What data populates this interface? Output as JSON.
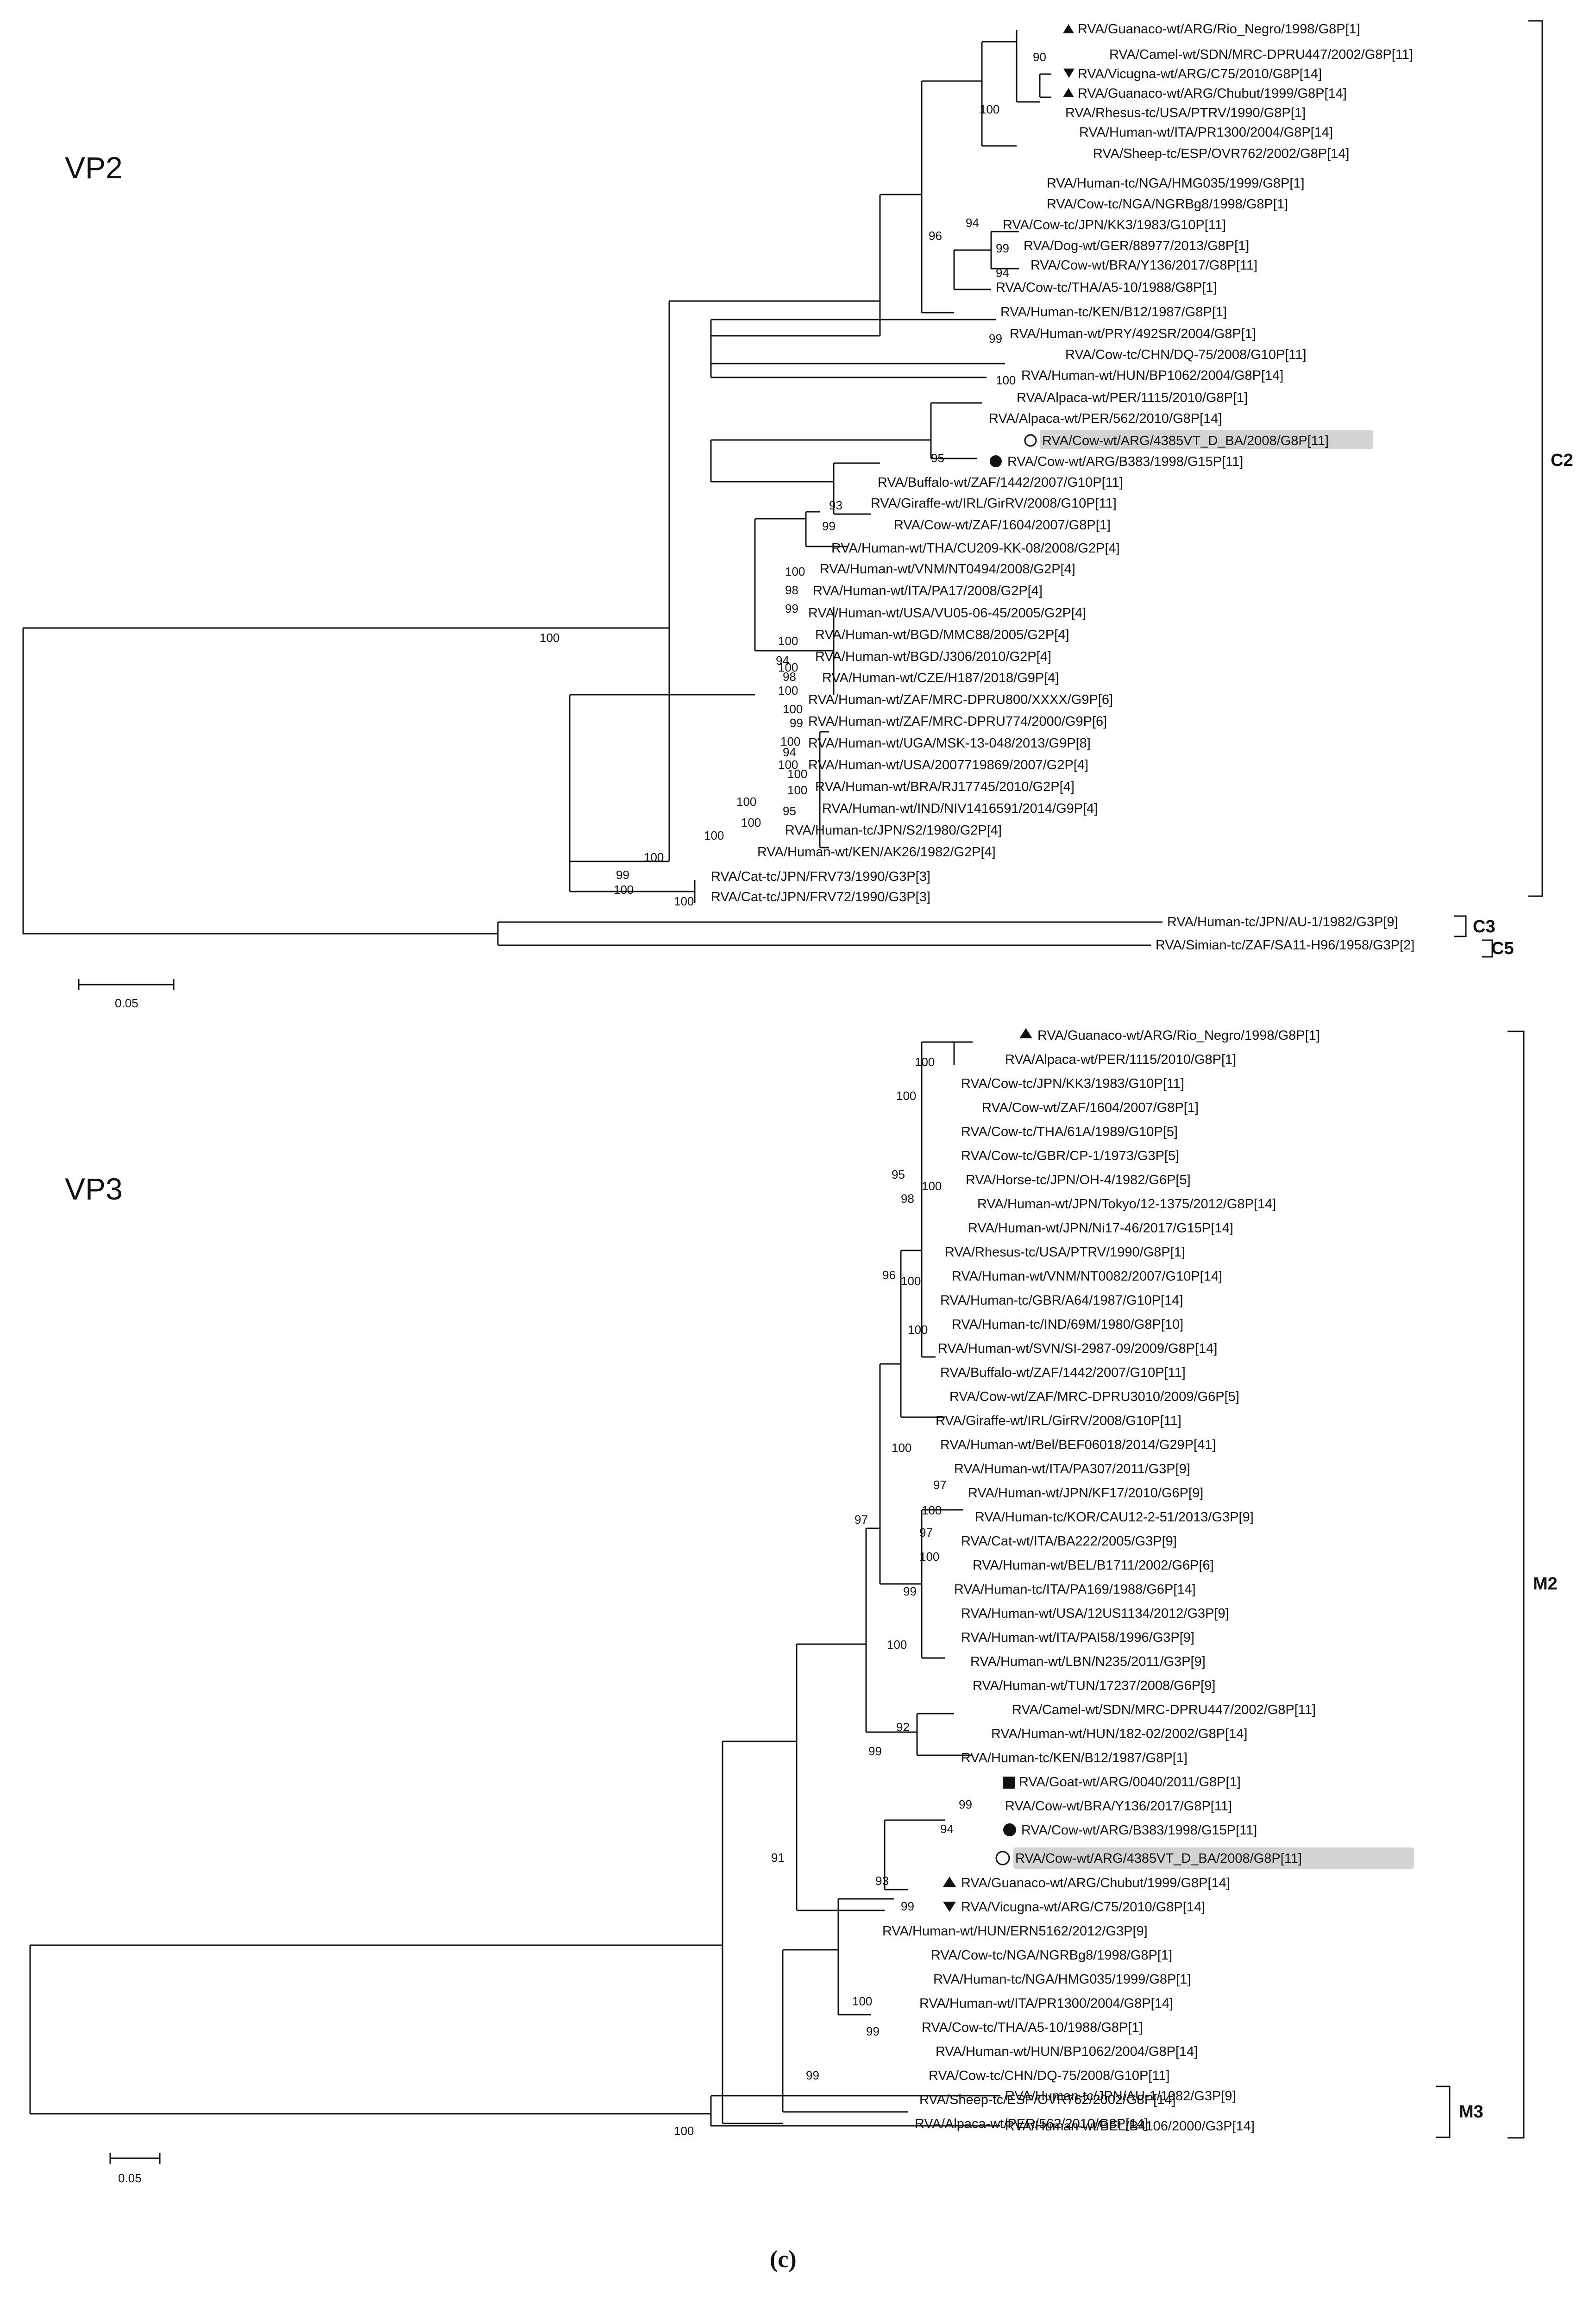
{
  "caption": "(c)",
  "scale_label": "0.05",
  "panels": [
    {
      "id": "vp2",
      "title": "VP2",
      "clades": [
        "C2",
        "C3",
        "C5"
      ],
      "tips": [
        {
          "label": "RVA/Guanaco-wt/ARG/Rio_Negro/1998/G8P[1]",
          "marker": "triangle-up"
        },
        {
          "label": "RVA/Camel-wt/SDN/MRC-DPRU447/2002/G8P[11]",
          "marker": ""
        },
        {
          "label": "RVA/Vicugna-wt/ARG/C75/2010/G8P[14]",
          "marker": "triangle-down"
        },
        {
          "label": "RVA/Guanaco-wt/ARG/Chubut/1999/G8P[14]",
          "marker": "triangle-up"
        },
        {
          "label": "RVA/Rhesus-tc/USA/PTRV/1990/G8P[1]",
          "marker": ""
        },
        {
          "label": "RVA/Human-wt/ITA/PR1300/2004/G8P[14]",
          "marker": ""
        },
        {
          "label": "RVA/Sheep-tc/ESP/OVR762/2002/G8P[14]",
          "marker": ""
        },
        {
          "label": "RVA/Human-tc/NGA/HMG035/1999/G8P[1]",
          "marker": ""
        },
        {
          "label": "RVA/Cow-tc/NGA/NGRBg8/1998/G8P[1]",
          "marker": ""
        },
        {
          "label": "RVA/Cow-tc/JPN/KK3/1983/G10P[11]",
          "marker": ""
        },
        {
          "label": "RVA/Dog-wt/GER/88977/2013/G8P[1]",
          "marker": ""
        },
        {
          "label": "RVA/Cow-wt/BRA/Y136/2017/G8P[11]",
          "marker": ""
        },
        {
          "label": "RVA/Cow-tc/THA/A5-10/1988/G8P[1]",
          "marker": ""
        },
        {
          "label": "RVA/Human-tc/KEN/B12/1987/G8P[1]",
          "marker": ""
        },
        {
          "label": "RVA/Human-wt/PRY/492SR/2004/G8P[1]",
          "marker": ""
        },
        {
          "label": "RVA/Cow-tc/CHN/DQ-75/2008/G10P[11]",
          "marker": ""
        },
        {
          "label": "RVA/Human-wt/HUN/BP1062/2004/G8P[14]",
          "marker": ""
        },
        {
          "label": "RVA/Alpaca-wt/PER/1115/2010/G8P[1]",
          "marker": ""
        },
        {
          "label": "RVA/Alpaca-wt/PER/562/2010/G8P[14]",
          "marker": ""
        },
        {
          "label": "RVA/Cow-wt/ARG/4385VT_D_BA/2008/G8P[11]",
          "marker": "circle-open",
          "highlight": true
        },
        {
          "label": "RVA/Cow-wt/ARG/B383/1998/G15P[11]",
          "marker": "circle-filled"
        },
        {
          "label": "RVA/Buffalo-wt/ZAF/1442/2007/G10P[11]",
          "marker": ""
        },
        {
          "label": "RVA/Giraffe-wt/IRL/GirRV/2008/G10P[11]",
          "marker": ""
        },
        {
          "label": "RVA/Cow-wt/ZAF/1604/2007/G8P[1]",
          "marker": ""
        },
        {
          "label": "RVA/Human-wt/THA/CU209-KK-08/2008/G2P[4]",
          "marker": ""
        },
        {
          "label": "RVA/Human-wt/VNM/NT0494/2008/G2P[4]",
          "marker": ""
        },
        {
          "label": "RVA/Human-wt/ITA/PA17/2008/G2P[4]",
          "marker": ""
        },
        {
          "label": "RVA/Human-wt/USA/VU05-06-45/2005/G2P[4]",
          "marker": ""
        },
        {
          "label": "RVA/Human-wt/BGD/MMC88/2005/G2P[4]",
          "marker": ""
        },
        {
          "label": "RVA/Human-wt/BGD/J306/2010/G2P[4]",
          "marker": ""
        },
        {
          "label": "RVA/Human-wt/CZE/H187/2018/G9P[4]",
          "marker": ""
        },
        {
          "label": "RVA/Human-wt/ZAF/MRC-DPRU800/XXXX/G9P[6]",
          "marker": ""
        },
        {
          "label": "RVA/Human-wt/ZAF/MRC-DPRU774/2000/G9P[6]",
          "marker": ""
        },
        {
          "label": "RVA/Human-wt/UGA/MSK-13-048/2013/G9P[8]",
          "marker": ""
        },
        {
          "label": "RVA/Human-wt/USA/2007719869/2007/G2P[4]",
          "marker": ""
        },
        {
          "label": "RVA/Human-wt/BRA/RJ17745/2010/G2P[4]",
          "marker": ""
        },
        {
          "label": "RVA/Human-wt/IND/NIV1416591/2014/G9P[4]",
          "marker": ""
        },
        {
          "label": "RVA/Human-tc/JPN/S2/1980/G2P[4]",
          "marker": ""
        },
        {
          "label": "RVA/Human-wt/KEN/AK26/1982/G2P[4]",
          "marker": ""
        },
        {
          "label": "RVA/Cat-tc/JPN/FRV73/1990/G3P[3]",
          "marker": ""
        },
        {
          "label": "RVA/Cat-tc/JPN/FRV72/1990/G3P[3]",
          "marker": ""
        },
        {
          "label": "RVA/Human-tc/JPN/AU-1/1982/G3P[9]",
          "marker": ""
        },
        {
          "label": "RVA/Simian-tc/ZAF/SA11-H96/1958/G3P[2]",
          "marker": ""
        }
      ],
      "bootstrap": [
        "90",
        "100",
        "94",
        "99",
        "94",
        "96",
        "99",
        "100",
        "95",
        "93",
        "99",
        "100",
        "98",
        "99",
        "100",
        "94",
        "98",
        "100",
        "99",
        "100",
        "94",
        "100",
        "100",
        "95",
        "99",
        "100",
        "100",
        "100",
        "100",
        "100",
        "100",
        "100",
        "100",
        "100",
        "100"
      ]
    },
    {
      "id": "vp3",
      "title": "VP3",
      "clades": [
        "M2",
        "M3"
      ],
      "tips": [
        {
          "label": "RVA/Guanaco-wt/ARG/Rio_Negro/1998/G8P[1]",
          "marker": "triangle-up"
        },
        {
          "label": "RVA/Alpaca-wt/PER/1115/2010/G8P[1]",
          "marker": ""
        },
        {
          "label": "RVA/Cow-tc/JPN/KK3/1983/G10P[11]",
          "marker": ""
        },
        {
          "label": "RVA/Cow-wt/ZAF/1604/2007/G8P[1]",
          "marker": ""
        },
        {
          "label": "RVA/Cow-tc/THA/61A/1989/G10P[5]",
          "marker": ""
        },
        {
          "label": "RVA/Cow-tc/GBR/CP-1/1973/G3P[5]",
          "marker": ""
        },
        {
          "label": "RVA/Horse-tc/JPN/OH-4/1982/G6P[5]",
          "marker": ""
        },
        {
          "label": "RVA/Human-wt/JPN/Tokyo/12-1375/2012/G8P[14]",
          "marker": ""
        },
        {
          "label": "RVA/Human-wt/JPN/Ni17-46/2017/G15P[14]",
          "marker": ""
        },
        {
          "label": "RVA/Rhesus-tc/USA/PTRV/1990/G8P[1]",
          "marker": ""
        },
        {
          "label": "RVA/Human-wt/VNM/NT0082/2007/G10P[14]",
          "marker": ""
        },
        {
          "label": "RVA/Human-tc/GBR/A64/1987/G10P[14]",
          "marker": ""
        },
        {
          "label": "RVA/Human-tc/IND/69M/1980/G8P[10]",
          "marker": ""
        },
        {
          "label": "RVA/Human-wt/SVN/SI-2987-09/2009/G8P[14]",
          "marker": ""
        },
        {
          "label": "RVA/Buffalo-wt/ZAF/1442/2007/G10P[11]",
          "marker": ""
        },
        {
          "label": "RVA/Cow-wt/ZAF/MRC-DPRU3010/2009/G6P[5]",
          "marker": ""
        },
        {
          "label": "RVA/Giraffe-wt/IRL/GirRV/2008/G10P[11]",
          "marker": ""
        },
        {
          "label": "RVA/Human-wt/Bel/BEF06018/2014/G29P[41]",
          "marker": ""
        },
        {
          "label": "RVA/Human-wt/ITA/PA307/2011/G3P[9]",
          "marker": ""
        },
        {
          "label": "RVA/Human-wt/JPN/KF17/2010/G6P[9]",
          "marker": ""
        },
        {
          "label": "RVA/Human-tc/KOR/CAU12-2-51/2013/G3P[9]",
          "marker": ""
        },
        {
          "label": "RVA/Cat-wt/ITA/BA222/2005/G3P[9]",
          "marker": ""
        },
        {
          "label": "RVA/Human-wt/BEL/B1711/2002/G6P[6]",
          "marker": ""
        },
        {
          "label": "RVA/Human-tc/ITA/PA169/1988/G6P[14]",
          "marker": ""
        },
        {
          "label": "RVA/Human-wt/USA/12US1134/2012/G3P[9]",
          "marker": ""
        },
        {
          "label": "RVA/Human-wt/ITA/PAI58/1996/G3P[9]",
          "marker": ""
        },
        {
          "label": "RVA/Human-wt/LBN/N235/2011/G3P[9]",
          "marker": ""
        },
        {
          "label": "RVA/Human-wt/TUN/17237/2008/G6P[9]",
          "marker": ""
        },
        {
          "label": "RVA/Camel-wt/SDN/MRC-DPRU447/2002/G8P[11]",
          "marker": ""
        },
        {
          "label": "RVA/Human-wt/HUN/182-02/2002/G8P[14]",
          "marker": ""
        },
        {
          "label": "RVA/Human-tc/KEN/B12/1987/G8P[1]",
          "marker": ""
        },
        {
          "label": "RVA/Goat-wt/ARG/0040/2011/G8P[1]",
          "marker": "square-filled"
        },
        {
          "label": "RVA/Cow-wt/BRA/Y136/2017/G8P[11]",
          "marker": ""
        },
        {
          "label": "RVA/Cow-wt/ARG/B383/1998/G15P[11]",
          "marker": "circle-filled"
        },
        {
          "label": "RVA/Cow-wt/ARG/4385VT_D_BA/2008/G8P[11]",
          "marker": "circle-open",
          "highlight": true
        },
        {
          "label": "RVA/Guanaco-wt/ARG/Chubut/1999/G8P[14]",
          "marker": "triangle-up"
        },
        {
          "label": "RVA/Vicugna-wt/ARG/C75/2010/G8P[14]",
          "marker": "triangle-down"
        },
        {
          "label": "RVA/Human-wt/HUN/ERN5162/2012/G3P[9]",
          "marker": ""
        },
        {
          "label": "RVA/Cow-tc/NGA/NGRBg8/1998/G8P[1]",
          "marker": ""
        },
        {
          "label": "RVA/Human-tc/NGA/HMG035/1999/G8P[1]",
          "marker": ""
        },
        {
          "label": "RVA/Human-wt/ITA/PR1300/2004/G8P[14]",
          "marker": ""
        },
        {
          "label": "RVA/Cow-tc/THA/A5-10/1988/G8P[1]",
          "marker": ""
        },
        {
          "label": "RVA/Human-wt/HUN/BP1062/2004/G8P[14]",
          "marker": ""
        },
        {
          "label": "RVA/Cow-tc/CHN/DQ-75/2008/G10P[11]",
          "marker": ""
        },
        {
          "label": "RVA/Sheep-tc/ESP/OVR762/2002/G8P[14]",
          "marker": ""
        },
        {
          "label": "RVA/Alpaca-wt/PER/562/2010/G8P[14]",
          "marker": ""
        },
        {
          "label": "RVA/Human-tc/JPN/AU-1/1982/G3P[9]",
          "marker": ""
        },
        {
          "label": "RVA/Human-wt/BEL/B4106/2000/G3P[14]",
          "marker": ""
        }
      ],
      "bootstrap": [
        "100",
        "100",
        "95",
        "100",
        "98",
        "96",
        "100",
        "100",
        "100",
        "97",
        "100",
        "97",
        "100",
        "99",
        "100",
        "97",
        "92",
        "99",
        "99",
        "94",
        "93",
        "99",
        "91",
        "100",
        "99",
        "99",
        "100"
      ]
    }
  ]
}
